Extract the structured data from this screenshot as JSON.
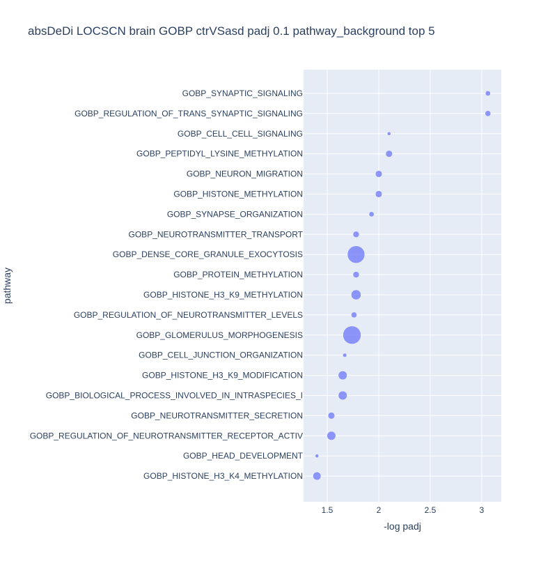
{
  "chart_data": {
    "type": "scatter",
    "title": "absDeDi LOCSCN brain GOBP ctrVSasd padj 0.1 pathway_background top 5",
    "xlabel": "-log padj",
    "ylabel": "pathway",
    "xlim": [
      1.27,
      3.19
    ],
    "x_ticks": [
      1.5,
      2,
      2.5,
      3
    ],
    "x_tick_labels": [
      "1.5",
      "2",
      "2.5",
      "3"
    ],
    "grid": true,
    "legend": "none",
    "colors": {
      "plot_background": "#e5ecf6",
      "marker": "#636efa",
      "text": "#2a3f5f"
    },
    "points": [
      {
        "pathway": "GOBP_SYNAPTIC_SIGNALING",
        "x": 3.06,
        "size": 2
      },
      {
        "pathway": "GOBP_REGULATION_OF_TRANS_SYNAPTIC_SIGNALING",
        "x": 3.06,
        "size": 2.5
      },
      {
        "pathway": "GOBP_CELL_CELL_SIGNALING",
        "x": 2.1,
        "size": 1
      },
      {
        "pathway": "GOBP_PEPTIDYL_LYSINE_METHYLATION",
        "x": 2.1,
        "size": 3.5
      },
      {
        "pathway": "GOBP_NEURON_MIGRATION",
        "x": 2.0,
        "size": 3.5
      },
      {
        "pathway": "GOBP_HISTONE_METHYLATION",
        "x": 2.0,
        "size": 3.5
      },
      {
        "pathway": "GOBP_SYNAPSE_ORGANIZATION",
        "x": 1.93,
        "size": 2
      },
      {
        "pathway": "GOBP_NEUROTRANSMITTER_TRANSPORT",
        "x": 1.78,
        "size": 3
      },
      {
        "pathway": "GOBP_DENSE_CORE_GRANULE_EXOCYTOSIS",
        "x": 1.78,
        "size": 23
      },
      {
        "pathway": "GOBP_PROTEIN_METHYLATION",
        "x": 1.78,
        "size": 3
      },
      {
        "pathway": "GOBP_HISTONE_H3_K9_METHYLATION",
        "x": 1.78,
        "size": 7.5
      },
      {
        "pathway": "GOBP_REGULATION_OF_NEUROTRANSMITTER_LEVELS",
        "x": 1.76,
        "size": 2.5
      },
      {
        "pathway": "GOBP_GLOMERULUS_MORPHOGENESIS",
        "x": 1.74,
        "size": 25
      },
      {
        "pathway": "GOBP_CELL_JUNCTION_ORGANIZATION",
        "x": 1.67,
        "size": 1.2
      },
      {
        "pathway": "GOBP_HISTONE_H3_K9_MODIFICATION",
        "x": 1.65,
        "size": 6
      },
      {
        "pathway": "GOBP_BIOLOGICAL_PROCESS_INVOLVED_IN_INTRASPECIES_I",
        "x": 1.65,
        "size": 6
      },
      {
        "pathway": "GOBP_NEUROTRANSMITTER_SECRETION",
        "x": 1.54,
        "size": 3.5
      },
      {
        "pathway": "GOBP_REGULATION_OF_NEUROTRANSMITTER_RECEPTOR_ACTIV",
        "x": 1.54,
        "size": 6
      },
      {
        "pathway": "GOBP_HEAD_DEVELOPMENT",
        "x": 1.4,
        "size": 1
      },
      {
        "pathway": "GOBP_HISTONE_H3_K4_METHYLATION",
        "x": 1.4,
        "size": 5
      }
    ]
  }
}
